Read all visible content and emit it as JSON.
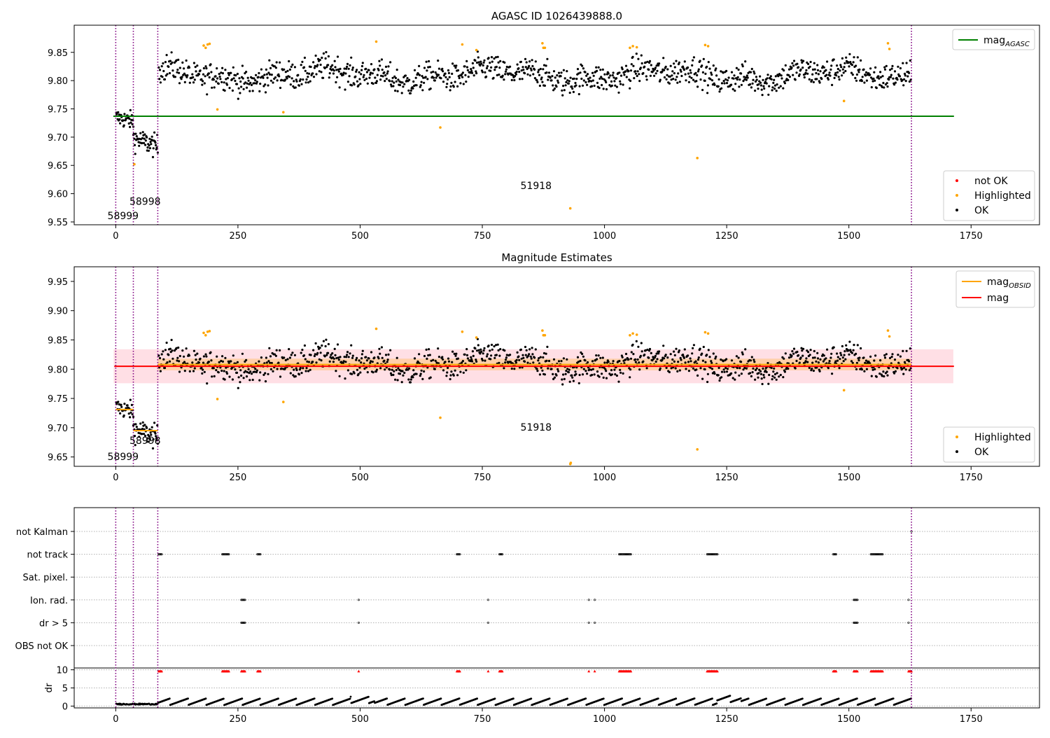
{
  "colors": {
    "ok": "#000000",
    "highlighted": "#ffa500",
    "not_ok": "#ff0000",
    "mag_agasc": "#008000",
    "mag": "#ff0000",
    "mag_obsid": "#ffa500",
    "obs_line": "#800080",
    "band": "#ffc0cb"
  },
  "chart_data": [
    {
      "type": "scatter",
      "title": "AGASC ID 1026439888.0",
      "xlim": [
        -85,
        1890
      ],
      "ylim": [
        9.545,
        9.898
      ],
      "x_ticks": [
        0,
        250,
        500,
        750,
        1000,
        1250,
        1500,
        1750
      ],
      "y_ticks": [
        9.55,
        9.6,
        9.65,
        9.7,
        9.75,
        9.8,
        9.85
      ],
      "legend_lines": [
        {
          "label": "mag",
          "subscript": "AGASC",
          "color_key": "mag_agasc"
        }
      ],
      "legend_points": [
        {
          "label": "not OK",
          "color_key": "not_ok"
        },
        {
          "label": "Highlighted",
          "color_key": "highlighted"
        },
        {
          "label": "OK",
          "color_key": "ok"
        }
      ],
      "mag_agasc": 9.737,
      "hline_xrange": [
        -5,
        1715
      ],
      "obs_boundaries": [
        0,
        36,
        86,
        1628
      ],
      "annotations": [
        {
          "text": "58999",
          "x": 15,
          "y": 9.555
        },
        {
          "text": "58998",
          "x": 60,
          "y": 9.58
        },
        {
          "text": "51918",
          "x": 860,
          "y": 9.608
        }
      ],
      "highlighted_points": [
        [
          180,
          9.862
        ],
        [
          184,
          9.858
        ],
        [
          188,
          9.864
        ],
        [
          192,
          9.865
        ],
        [
          208,
          9.749
        ],
        [
          343,
          9.744
        ],
        [
          533,
          9.869
        ],
        [
          664,
          9.717
        ],
        [
          709,
          9.864
        ],
        [
          738,
          9.854
        ],
        [
          873,
          9.866
        ],
        [
          875,
          9.858
        ],
        [
          878,
          9.858
        ],
        [
          930,
          9.574
        ],
        [
          1052,
          9.858
        ],
        [
          1058,
          9.861
        ],
        [
          1066,
          9.859
        ],
        [
          1190,
          9.663
        ],
        [
          1206,
          9.863
        ],
        [
          1212,
          9.861
        ],
        [
          1490,
          9.764
        ],
        [
          1580,
          9.866
        ],
        [
          1583,
          9.856
        ],
        [
          38,
          9.652
        ]
      ]
    },
    {
      "type": "scatter",
      "title": "Magnitude Estimates",
      "xlim": [
        -85,
        1890
      ],
      "ylim": [
        9.634,
        9.975
      ],
      "x_ticks": [
        0,
        250,
        500,
        750,
        1000,
        1250,
        1500,
        1750
      ],
      "y_ticks": [
        9.65,
        9.7,
        9.75,
        9.8,
        9.85,
        9.9,
        9.95
      ],
      "legend_lines": [
        {
          "label": "mag",
          "subscript": "OBSID",
          "color_key": "mag_obsid"
        },
        {
          "label": "mag",
          "subscript": "",
          "color_key": "mag"
        }
      ],
      "legend_points": [
        {
          "label": "Highlighted",
          "color_key": "highlighted"
        },
        {
          "label": "OK",
          "color_key": "ok"
        }
      ],
      "mag": 9.805,
      "band": [
        9.776,
        9.834
      ],
      "obsid_segments": [
        {
          "x": [
            0,
            36
          ],
          "mag": 9.731
        },
        {
          "x": [
            36,
            86
          ],
          "mag": 9.695
        },
        {
          "x": [
            86,
            1628
          ],
          "mag": 9.808
        }
      ],
      "obs_boundaries": [
        0,
        36,
        86,
        1628
      ],
      "annotations": [
        {
          "text": "58999",
          "x": 15,
          "y": 9.645
        },
        {
          "text": "58998",
          "x": 60,
          "y": 9.672
        },
        {
          "text": "51918",
          "x": 860,
          "y": 9.695
        }
      ],
      "highlighted_points": [
        [
          180,
          9.862
        ],
        [
          184,
          9.858
        ],
        [
          188,
          9.864
        ],
        [
          192,
          9.865
        ],
        [
          208,
          9.749
        ],
        [
          343,
          9.744
        ],
        [
          533,
          9.869
        ],
        [
          664,
          9.717
        ],
        [
          709,
          9.864
        ],
        [
          738,
          9.854
        ],
        [
          873,
          9.866
        ],
        [
          875,
          9.858
        ],
        [
          878,
          9.858
        ],
        [
          930,
          9.638
        ],
        [
          931,
          9.64
        ],
        [
          1052,
          9.858
        ],
        [
          1058,
          9.861
        ],
        [
          1066,
          9.859
        ],
        [
          1190,
          9.663
        ],
        [
          1206,
          9.863
        ],
        [
          1212,
          9.861
        ],
        [
          1490,
          9.764
        ],
        [
          1580,
          9.866
        ],
        [
          1583,
          9.856
        ]
      ]
    },
    {
      "type": "scatter",
      "title": "",
      "xlim": [
        -85,
        1890
      ],
      "x_ticks": [
        0,
        250,
        500,
        750,
        1000,
        1250,
        1500,
        1750
      ],
      "flag_rows": [
        "not Kalman",
        "not track",
        "Sat. pixel.",
        "Ion. rad.",
        "dr > 5",
        "OBS not OK"
      ],
      "flags": {
        "not Kalman": [
          1628
        ],
        "not track": [
          [
            88,
            95
          ],
          [
            218,
            232
          ],
          [
            290,
            297
          ],
          [
            698,
            705
          ],
          [
            785,
            792
          ],
          [
            1030,
            1055
          ],
          [
            1210,
            1232
          ],
          [
            1468,
            1474
          ],
          [
            1545,
            1570
          ]
        ],
        "Ion. rad.": [
          [
            257,
            265
          ],
          [
            497,
            497
          ],
          [
            762,
            762
          ],
          [
            968,
            968
          ],
          [
            980,
            980
          ],
          [
            1510,
            1518
          ],
          [
            1622,
            1622
          ]
        ],
        "dr > 5": [
          [
            257,
            265
          ],
          [
            497,
            497
          ],
          [
            762,
            762
          ],
          [
            968,
            968
          ],
          [
            980,
            980
          ],
          [
            1510,
            1518
          ],
          [
            1622,
            1622
          ]
        ]
      },
      "dr_ylabel": "dr",
      "dr_ylim": [
        -0.5,
        10.5
      ],
      "dr_ticks": [
        0,
        5,
        10
      ],
      "dr_clipped_ranges": [
        [
          88,
          95
        ],
        [
          218,
          232
        ],
        [
          257,
          265
        ],
        [
          290,
          297
        ],
        [
          497,
          497
        ],
        [
          698,
          705
        ],
        [
          762,
          762
        ],
        [
          785,
          792
        ],
        [
          968,
          968
        ],
        [
          980,
          980
        ],
        [
          1030,
          1055
        ],
        [
          1210,
          1232
        ],
        [
          1468,
          1474
        ],
        [
          1510,
          1518
        ],
        [
          1545,
          1570
        ],
        [
          1622,
          1628
        ]
      ],
      "obs_boundaries": [
        0,
        36,
        86,
        1628
      ]
    }
  ]
}
